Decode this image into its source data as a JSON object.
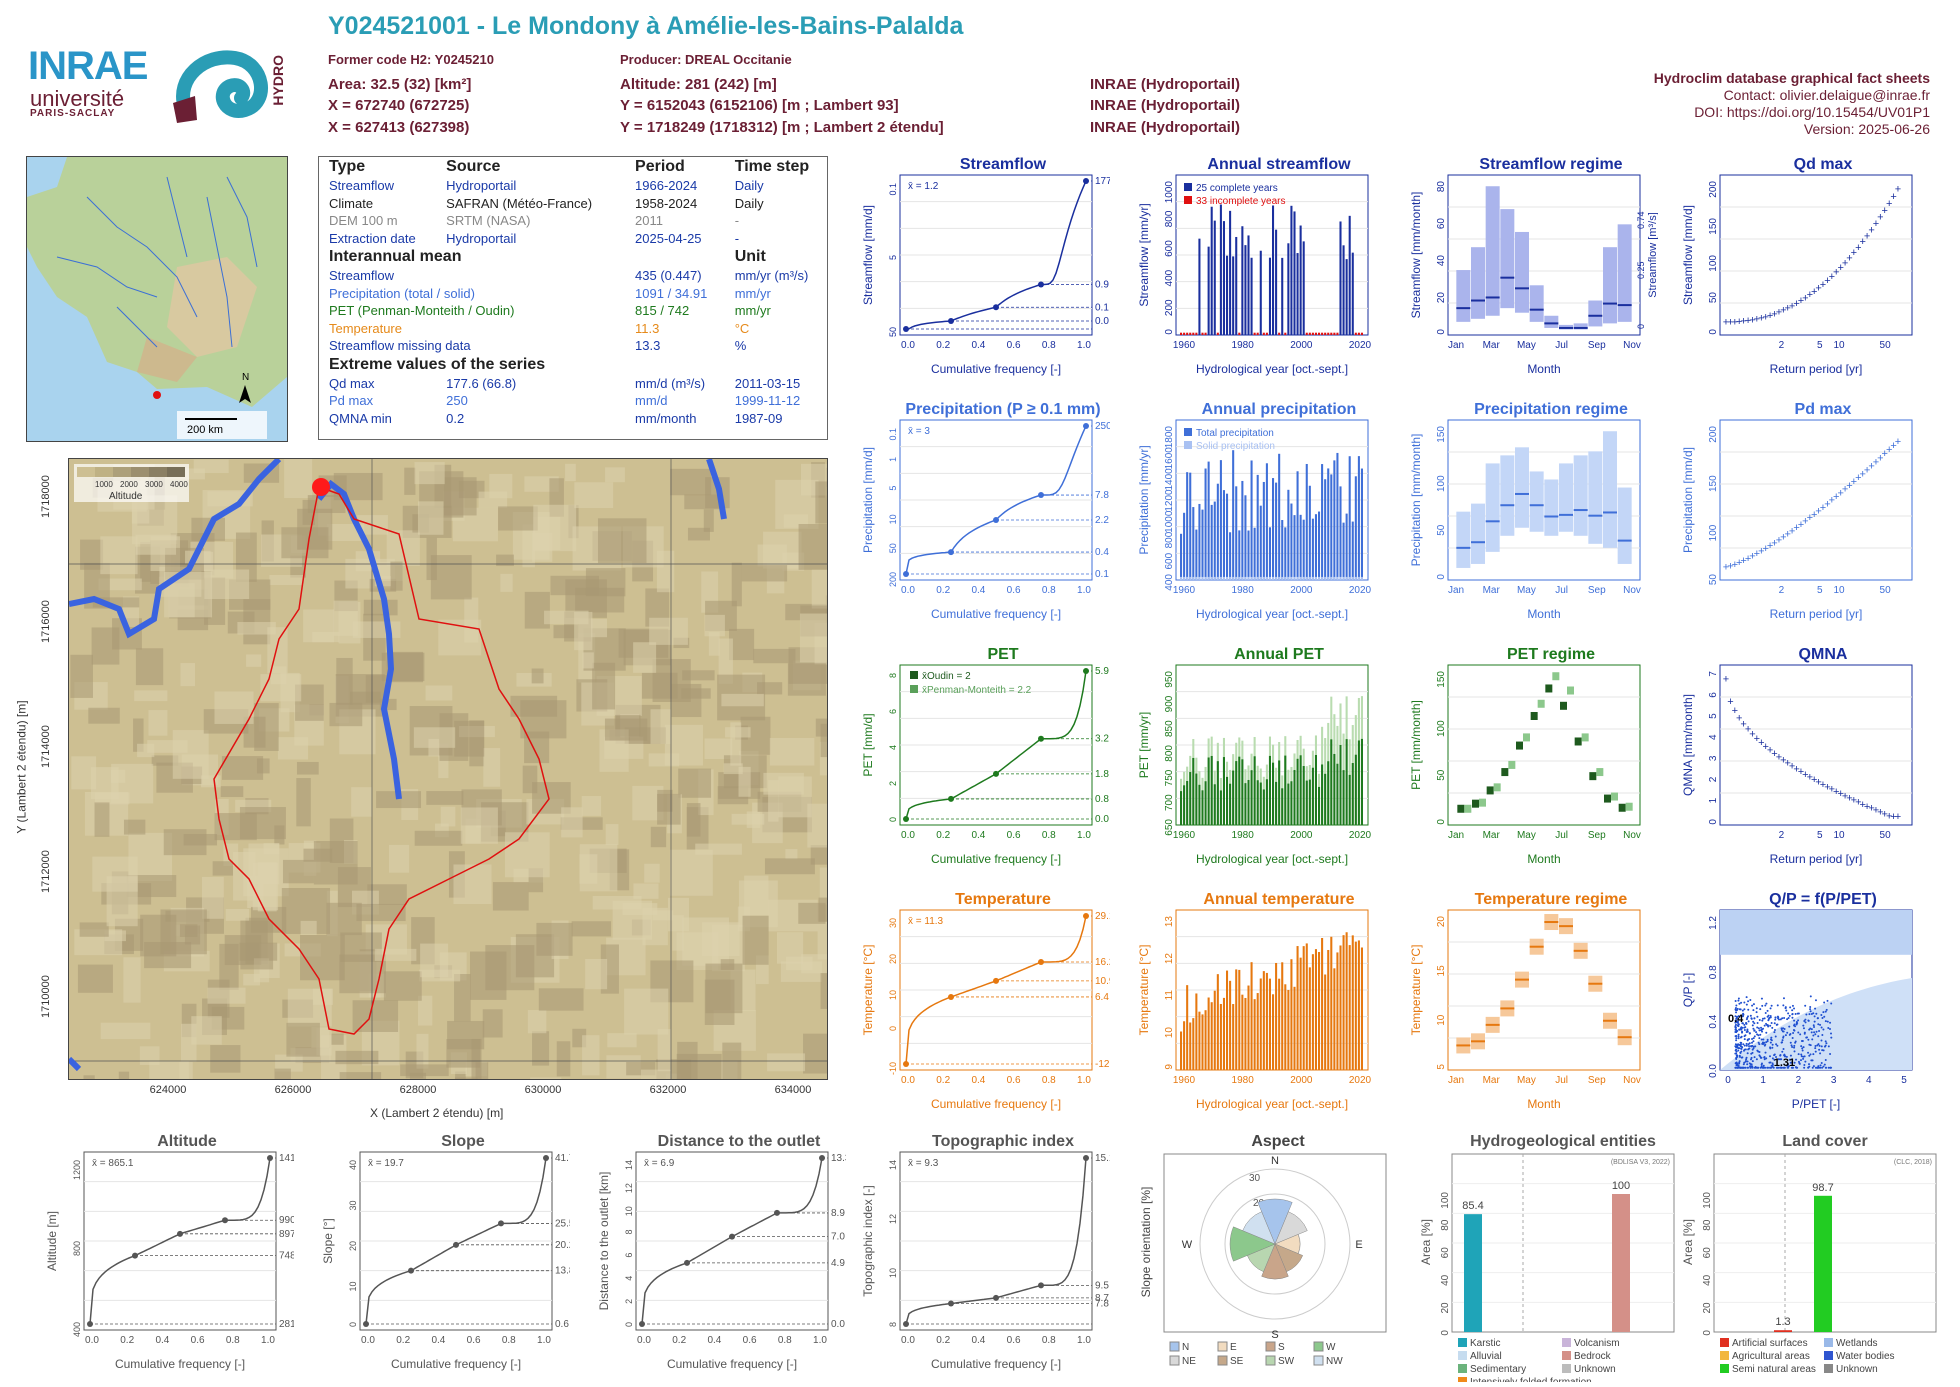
{
  "header": {
    "title": "Y024521001 - Le Mondony à Amélie-les-Bains-Palalda",
    "former_code": "Former code H2: Y0245210",
    "producer": "Producer: DREAL Occitanie",
    "area": "Area: 32.5 (32) [km²]",
    "altitude": "Altitude: 281 (242) [m]",
    "x93": "X = 672740 (672725)",
    "y93": "Y = 6152043 (6152106) [m ; Lambert 93]",
    "x2": "X = 627413 (627398)",
    "y2": "Y = 1718249 (1718312) [m ; Lambert 2 étendu]",
    "src1": "INRAE (Hydroportail)",
    "src2": "INRAE (Hydroportail)",
    "src3": "INRAE (Hydroportail)",
    "db_title": "Hydroclim database graphical fact sheets",
    "contact": "Contact: olivier.delaigue@inrae.fr",
    "doi": "DOI: https://doi.org/10.15454/UV01P1",
    "version": "Version: 2025-06-26"
  },
  "logos": {
    "inrae": "INRAE",
    "univ": "université",
    "ps": "PARIS-SACLAY",
    "hydro": "HYDRO"
  },
  "minimap": {
    "scale": "200 km",
    "north": "N"
  },
  "info": {
    "h_type": "Type",
    "h_source": "Source",
    "h_period": "Period",
    "h_step": "Time step",
    "rows": [
      {
        "type": "Streamflow",
        "source": "Hydroportail",
        "period": "1966-2024",
        "step": "Daily"
      },
      {
        "type": "Climate",
        "source": "SAFRAN (Météo-France)",
        "period": "1958-2024",
        "step": "Daily"
      },
      {
        "type": "DEM 100 m",
        "source": "SRTM (NASA)",
        "period": "2011",
        "step": "-"
      },
      {
        "type": "Extraction date",
        "source": "Hydroportail",
        "period": "2025-04-25",
        "step": "-"
      }
    ],
    "h_mean": "Interannual mean",
    "h_unit": "Unit",
    "mean": [
      {
        "name": "Streamflow",
        "val": "435 (0.447)",
        "unit": "mm/yr (m³/s)"
      },
      {
        "name": "Precipitation (total / solid)",
        "val": "1091 / 34.91",
        "unit": "mm/yr"
      },
      {
        "name": "PET (Penman-Monteith / Oudin)",
        "val": "815 / 742",
        "unit": "mm/yr"
      },
      {
        "name": "Temperature",
        "val": "11.3",
        "unit": "°C"
      },
      {
        "name": "Streamflow missing data",
        "val": "13.3",
        "unit": "%"
      }
    ],
    "h_extreme": "Extreme values of the series",
    "extreme": [
      {
        "name": "Qd max",
        "val": "177.6 (66.8)",
        "unit": "mm/d (m³/s)",
        "date": "2011-03-15"
      },
      {
        "name": "Pd max",
        "val": "250",
        "unit": "mm/d",
        "date": "1999-11-12"
      },
      {
        "name": "QMNA min",
        "val": "0.2",
        "unit": "mm/month",
        "date": "1987-09"
      }
    ]
  },
  "bigmap": {
    "legend_title": "Altitude",
    "legend_ticks": [
      "1000",
      "2000",
      "3000",
      "4000"
    ],
    "xlabel": "X (Lambert 2 étendu) [m]",
    "ylabel": "Y (Lambert 2 étendu) [m]",
    "xticks": [
      "624000",
      "626000",
      "628000",
      "630000",
      "632000",
      "634000"
    ],
    "yticks": [
      "1718000",
      "1716000",
      "1714000",
      "1712000",
      "1710000"
    ]
  },
  "colors": {
    "flow": "#1a2f9e",
    "prec": "#3f6fd8",
    "pet": "#1e7a1e",
    "temp": "#e6780f",
    "topo": "#555555",
    "header": "#6b1f34",
    "title": "#2a9db5"
  },
  "chart_data": [
    {
      "id": "streamflow",
      "type": "line",
      "title": "Streamflow",
      "xlabel": "Cumulative frequency [-]",
      "ylabel": "Streamflow [mm/d]",
      "log": true,
      "x": [
        0,
        0.25,
        0.5,
        0.75,
        1.0
      ],
      "y": [
        0.0,
        0.1,
        0.25,
        0.9,
        177.6
      ],
      "mean": "x̄ = 1.2",
      "right_ticks": [
        "177.6",
        "0.9",
        "0.1",
        "0.0"
      ],
      "left_ticks": [
        "50",
        "5",
        "0.1"
      ]
    },
    {
      "id": "annual_streamflow",
      "type": "bar",
      "title": "Annual streamflow",
      "xlabel": "Hydrological year [oct.-sept.]",
      "ylabel": "Streamflow [mm/yr]",
      "legend": [
        "25 complete years",
        "33 incomplete years"
      ],
      "xticks": [
        "1960",
        "1980",
        "2000",
        "2020"
      ],
      "yticks": [
        "0",
        "200",
        "400",
        "600",
        "800",
        "1000"
      ]
    },
    {
      "id": "streamflow_regime",
      "type": "bar",
      "title": "Streamflow regime",
      "xlabel": "Month",
      "ylabel": "Streamflow [mm/month]",
      "ylabel2": "Streamflow [m³/s]",
      "categories": [
        "Jan",
        "Feb",
        "Mar",
        "Apr",
        "May",
        "Jun",
        "Jul",
        "Aug",
        "Sep",
        "Oct",
        "Nov",
        "Dec"
      ],
      "median": [
        15,
        20,
        22,
        35,
        28,
        14,
        5,
        2,
        2,
        10,
        18,
        17
      ],
      "q10": [
        6,
        8,
        10,
        15,
        12,
        6,
        2,
        1,
        1,
        3,
        5,
        6
      ],
      "q90": [
        40,
        55,
        95,
        80,
        65,
        30,
        10,
        4,
        5,
        20,
        55,
        70
      ],
      "xticks": [
        "Jan",
        "Mar",
        "May",
        "Jul",
        "Sep",
        "Nov"
      ],
      "yticks": [
        "0",
        "20",
        "40",
        "60",
        "80"
      ],
      "yticks2": [
        "0",
        "0.25",
        "0.74"
      ]
    },
    {
      "id": "qd_max",
      "type": "scatter",
      "title": "Qd max",
      "xlabel": "Return period [yr]",
      "ylabel": "Streamflow [mm/d]",
      "xticks": [
        "2",
        "5",
        "10",
        "50"
      ],
      "yticks": [
        "0",
        "50",
        "100",
        "150",
        "200"
      ]
    },
    {
      "id": "precipitation",
      "type": "line",
      "title": "Precipitation (P ≥ 0.1 mm)",
      "xlabel": "Cumulative frequency [-]",
      "ylabel": "Precipitation [mm/d]",
      "log": true,
      "x": [
        0,
        0.25,
        0.5,
        0.75,
        1.0
      ],
      "y": [
        0.1,
        0.4,
        2.2,
        7.8,
        250.0
      ],
      "mean": "x̄ = 3",
      "right_ticks": [
        "250.0",
        "7.8",
        "2.2",
        "0.4",
        "0.1"
      ],
      "left_ticks": [
        "200",
        "50",
        "10",
        "5",
        "1",
        "0.1"
      ]
    },
    {
      "id": "annual_precipitation",
      "type": "bar",
      "title": "Annual precipitation",
      "xlabel": "Hydrological year [oct.-sept.]",
      "ylabel": "Precipitation [mm/yr]",
      "legend": [
        "Total precipitation",
        "Solid precipitation"
      ],
      "xticks": [
        "1960",
        "1980",
        "2000",
        "2020"
      ],
      "yticks": [
        "400",
        "600",
        "800",
        "1000",
        "1200",
        "1400",
        "1600",
        "1800"
      ]
    },
    {
      "id": "precipitation_regime",
      "type": "bar",
      "title": "Precipitation regime",
      "xlabel": "Month",
      "ylabel": "Precipitation [mm/month]",
      "categories": [
        "Jan",
        "Feb",
        "Mar",
        "Apr",
        "May",
        "Jun",
        "Jul",
        "Aug",
        "Sep",
        "Oct",
        "Nov",
        "Dec"
      ],
      "median": [
        35,
        42,
        68,
        88,
        102,
        88,
        74,
        76,
        82,
        75,
        79,
        44
      ],
      "q10": [
        10,
        15,
        30,
        50,
        60,
        55,
        50,
        55,
        50,
        40,
        35,
        15
      ],
      "q90": [
        80,
        90,
        140,
        150,
        160,
        130,
        120,
        140,
        150,
        155,
        180,
        110
      ],
      "xticks": [
        "Jan",
        "Mar",
        "May",
        "Jul",
        "Sep",
        "Nov"
      ],
      "yticks": [
        "0",
        "50",
        "100",
        "150"
      ]
    },
    {
      "id": "pd_max",
      "type": "scatter",
      "title": "Pd max",
      "xlabel": "Return period [yr]",
      "ylabel": "Precipitation [mm/d]",
      "xticks": [
        "2",
        "5",
        "10",
        "50"
      ],
      "yticks": [
        "50",
        "100",
        "150",
        "200"
      ]
    },
    {
      "id": "pet",
      "type": "line",
      "title": "PET",
      "xlabel": "Cumulative frequency [-]",
      "ylabel": "PET [mm/d]",
      "x": [
        0,
        0.25,
        0.5,
        0.75,
        1.0
      ],
      "y": [
        0.0,
        0.8,
        1.8,
        3.2,
        5.9
      ],
      "mean_oudin": "x̄Oudin = 2",
      "mean_pm": "x̄Penman-Monteith = 2.2",
      "right_ticks": [
        "5.9",
        "3.2",
        "1.8",
        "0.8",
        "0.0"
      ],
      "left_ticks": [
        "0",
        "2",
        "4",
        "6",
        "8"
      ]
    },
    {
      "id": "annual_pet",
      "type": "bar",
      "title": "Annual PET",
      "xlabel": "Hydrological year [oct.-sept.]",
      "ylabel": "PET [mm/yr]",
      "xticks": [
        "1960",
        "1980",
        "2000",
        "2020"
      ],
      "yticks": [
        "650",
        "700",
        "750",
        "800",
        "850",
        "900",
        "950"
      ]
    },
    {
      "id": "pet_regime",
      "type": "bar",
      "title": "PET regime",
      "xlabel": "Month",
      "ylabel": "PET [mm/month]",
      "categories": [
        "Jan",
        "Feb",
        "Mar",
        "Apr",
        "May",
        "Jun",
        "Jul",
        "Aug",
        "Sep",
        "Oct",
        "Nov",
        "Dec"
      ],
      "oudin": [
        12,
        17,
        30,
        48,
        74,
        103,
        130,
        113,
        78,
        44,
        22,
        13
      ],
      "pm": [
        12,
        18,
        33,
        55,
        82,
        115,
        142,
        128,
        82,
        48,
        24,
        14
      ],
      "xticks": [
        "Jan",
        "Mar",
        "May",
        "Jul",
        "Sep",
        "Nov"
      ],
      "yticks": [
        "0",
        "50",
        "100",
        "150"
      ]
    },
    {
      "id": "qmna",
      "type": "scatter",
      "title": "QMNA",
      "xlabel": "Return period [yr]",
      "ylabel": "QMNA [mm/month]",
      "xticks": [
        "2",
        "5",
        "10",
        "50"
      ],
      "yticks": [
        "0",
        "1",
        "2",
        "3",
        "4",
        "5",
        "6",
        "7"
      ]
    },
    {
      "id": "temperature",
      "type": "line",
      "title": "Temperature",
      "xlabel": "Cumulative frequency [-]",
      "ylabel": "Temperature [°C]",
      "x": [
        0,
        0.25,
        0.5,
        0.75,
        1.0
      ],
      "y": [
        -12.4,
        6.4,
        10.9,
        16.2,
        29.1
      ],
      "mean": "x̄ = 11.3",
      "right_ticks": [
        "29.1",
        "16.2",
        "10.9",
        "6.4",
        "-12.4"
      ],
      "left_ticks": [
        "-10",
        "0",
        "10",
        "20",
        "30"
      ]
    },
    {
      "id": "annual_temperature",
      "type": "bar",
      "title": "Annual temperature",
      "xlabel": "Hydrological year [oct.-sept.]",
      "ylabel": "Temperature [°C]",
      "xticks": [
        "1960",
        "1980",
        "2000",
        "2020"
      ],
      "yticks": [
        "9",
        "10",
        "11",
        "12",
        "13"
      ]
    },
    {
      "id": "temperature_regime",
      "type": "bar",
      "title": "Temperature regime",
      "xlabel": "Month",
      "ylabel": "Temperature [°C]",
      "categories": [
        "Jan",
        "Feb",
        "Mar",
        "Apr",
        "May",
        "Jun",
        "Jul",
        "Aug",
        "Sep",
        "Oct",
        "Nov",
        "Dec"
      ],
      "median": [
        4.5,
        5,
        7,
        9,
        12.5,
        16.5,
        19.5,
        19,
        16,
        12,
        7.5,
        5.5
      ],
      "xticks": [
        "Jan",
        "Mar",
        "May",
        "Jul",
        "Sep",
        "Nov"
      ],
      "yticks": [
        "5",
        "10",
        "15",
        "20"
      ]
    },
    {
      "id": "qp_ratio",
      "type": "scatter",
      "title": "Q/P = f(P/PET)",
      "xlabel": "P/PET [-]",
      "ylabel": "Q/P [-]",
      "labels": [
        "0.4",
        "1.31"
      ],
      "xticks": [
        "0",
        "1",
        "2",
        "3",
        "4",
        "5"
      ],
      "yticks": [
        "0.0",
        "0.4",
        "0.8",
        "1.2"
      ]
    },
    {
      "id": "altitude",
      "type": "line",
      "title": "Altitude",
      "xlabel": "Cumulative frequency [-]",
      "ylabel": "Altitude [m]",
      "x": [
        0,
        0.25,
        0.5,
        0.75,
        1.0
      ],
      "y": [
        281,
        748,
        897,
        990,
        1415
      ],
      "mean": "x̄ = 865.1",
      "right_ticks": [
        "1415",
        "990",
        "897",
        "748",
        "281"
      ],
      "left_ticks": [
        "400",
        "800",
        "1200"
      ]
    },
    {
      "id": "slope",
      "type": "line",
      "title": "Slope",
      "xlabel": "Cumulative frequency [-]",
      "ylabel": "Slope [°]",
      "x": [
        0,
        0.25,
        0.5,
        0.75,
        1.0
      ],
      "y": [
        0.6,
        13.8,
        20.2,
        25.5,
        41.7
      ],
      "mean": "x̄ = 19.7",
      "right_ticks": [
        "41.7",
        "25.5",
        "20.2",
        "13.8",
        "0.6"
      ],
      "left_ticks": [
        "0",
        "10",
        "20",
        "30",
        "40"
      ]
    },
    {
      "id": "distance",
      "type": "line",
      "title": "Distance to the outlet",
      "xlabel": "Cumulative frequency [-]",
      "ylabel": "Distance to the outlet [km]",
      "x": [
        0,
        0.25,
        0.5,
        0.75,
        1.0
      ],
      "y": [
        0.0,
        4.9,
        7.0,
        8.9,
        13.3
      ],
      "mean": "x̄ = 6.9",
      "right_ticks": [
        "13.3",
        "8.9",
        "7.0",
        "4.9",
        "0.0"
      ],
      "left_ticks": [
        "0",
        "2",
        "4",
        "6",
        "8",
        "10",
        "12",
        "14"
      ]
    },
    {
      "id": "topo_index",
      "type": "line",
      "title": "Topographic index",
      "xlabel": "Cumulative frequency [-]",
      "ylabel": "Topographic index [-]",
      "x": [
        0,
        0.25,
        0.5,
        0.75,
        1.0
      ],
      "y": [
        7.8,
        8.7,
        8.95,
        9.5,
        15.1
      ],
      "mean": "x̄ = 9.3",
      "right_ticks": [
        "15.1",
        "9.5",
        "8.7",
        "7.8"
      ],
      "left_ticks": [
        "8",
        "10",
        "12",
        "14"
      ]
    },
    {
      "id": "aspect",
      "type": "pie",
      "title": "Aspect",
      "ylabel": "Slope orientation [%]",
      "directions": [
        "N",
        "NE",
        "E",
        "SE",
        "S",
        "SW",
        "W",
        "NW"
      ],
      "values": [
        18,
        14,
        10,
        12,
        14,
        12,
        18,
        14
      ],
      "rings": [
        "10",
        "20",
        "30"
      ],
      "legend": [
        "N",
        "E",
        "S",
        "W",
        "NE",
        "SE",
        "SW",
        "NW"
      ]
    },
    {
      "id": "hydrogeology",
      "type": "bar",
      "title": "Hydrogeological entities",
      "ylabel": "Area [%]",
      "note": "(BDLISA V3, 2022)",
      "values": [
        85.4,
        100
      ],
      "labels": [
        "85.4",
        "100"
      ],
      "yticks": [
        "0",
        "20",
        "40",
        "60",
        "80",
        "100"
      ],
      "legend": [
        "Karstic",
        "Volcanism",
        "Alluvial",
        "Bedrock",
        "Sedimentary",
        "Unknown",
        "Intensively folded formation"
      ]
    },
    {
      "id": "landcover",
      "type": "bar",
      "title": "Land cover",
      "ylabel": "Area [%]",
      "note": "(CLC, 2018)",
      "values": [
        1.3,
        98.7
      ],
      "labels": [
        "1.3",
        "98.7"
      ],
      "yticks": [
        "0",
        "20",
        "40",
        "60",
        "80",
        "100"
      ],
      "legend": [
        "Artificial surfaces",
        "Wetlands",
        "Agricultural areas",
        "Water bodies",
        "Semi natural areas",
        "Unknown"
      ]
    }
  ]
}
